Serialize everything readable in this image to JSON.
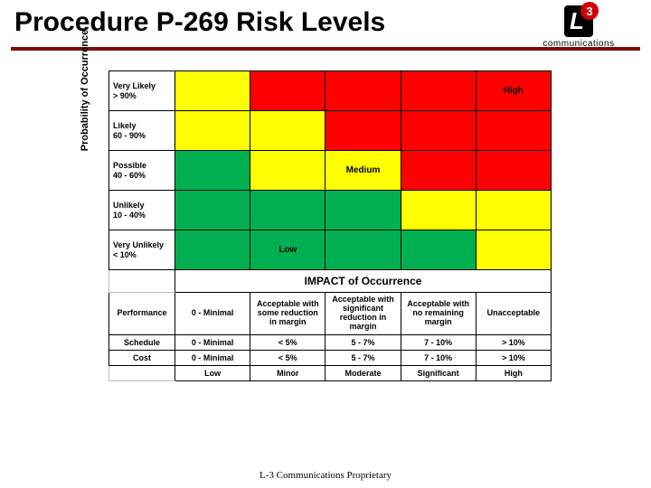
{
  "title": "Procedure P-269 Risk Levels",
  "logo": {
    "main": "L",
    "badge": "3",
    "sub": "communications"
  },
  "footer": "L-3 Communications Proprietary",
  "colors": {
    "low": "#00b050",
    "medium": "#ffff00",
    "high": "#ff0000",
    "rule": "#7a0e0e"
  },
  "yaxis": "Probability of Occurrence",
  "xaxis": "IMPACT of Occurrence",
  "prob_rows": [
    {
      "label": "Very Likely\n> 90%"
    },
    {
      "label": "Likely\n60 - 90%"
    },
    {
      "label": "Possible\n40 - 60%"
    },
    {
      "label": "Unlikely\n10 - 40%"
    },
    {
      "label": "Very Unlikely\n< 10%"
    }
  ],
  "matrix": [
    [
      "medium",
      "high",
      "high",
      "high",
      "high"
    ],
    [
      "medium",
      "medium",
      "high",
      "high",
      "high"
    ],
    [
      "low",
      "medium",
      "medium",
      "high",
      "high"
    ],
    [
      "low",
      "low",
      "low",
      "medium",
      "medium"
    ],
    [
      "low",
      "low",
      "low",
      "low",
      "medium"
    ]
  ],
  "cell_labels": {
    "0,4": "High",
    "2,2": "Medium",
    "4,1": "Low"
  },
  "impact_header_row": {
    "title": "Performance",
    "cols": [
      "0 - Minimal",
      "Acceptable with some reduction in margin",
      "Acceptable with significant reduction in margin",
      "Acceptable with no remaining margin",
      "Unacceptable"
    ]
  },
  "extra_rows": [
    {
      "title": "Schedule",
      "cols": [
        "0 - Minimal",
        "< 5%",
        "5 - 7%",
        "7 - 10%",
        "> 10%"
      ]
    },
    {
      "title": "Cost",
      "cols": [
        "0 - Minimal",
        "< 5%",
        "5 - 7%",
        "7 - 10%",
        "> 10%"
      ]
    }
  ],
  "severity_row": [
    "Low",
    "Minor",
    "Moderate",
    "Significant",
    "High"
  ]
}
